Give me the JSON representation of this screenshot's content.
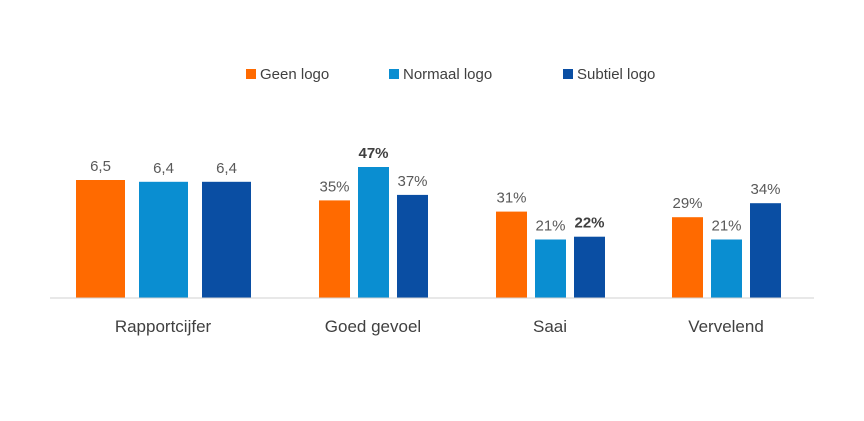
{
  "chart_data": {
    "type": "bar",
    "title": "",
    "xlabel": "",
    "ylabel": "",
    "categories": [
      "Rapportcijfer",
      "Goed gevoel",
      "Saai",
      "Vervelend"
    ],
    "series": [
      {
        "name": "Geen logo",
        "color": "#FF6A00",
        "values": [
          6.5,
          35,
          31,
          29
        ],
        "labels": [
          "6,5",
          "35%",
          "31%",
          "29%"
        ],
        "bold": [
          false,
          false,
          false,
          false
        ]
      },
      {
        "name": "Normaal logo",
        "color": "#0A8ED1",
        "values": [
          6.4,
          47,
          21,
          21
        ],
        "labels": [
          "6,4",
          "47%",
          "21%",
          "21%"
        ],
        "bold": [
          false,
          true,
          false,
          false
        ]
      },
      {
        "name": "Subtiel logo",
        "color": "#0A4EA3",
        "values": [
          6.4,
          37,
          22,
          34
        ],
        "labels": [
          "6,4",
          "37%",
          "22%",
          "34%"
        ],
        "bold": [
          false,
          false,
          true,
          false
        ]
      }
    ],
    "scales": [
      "grade",
      "percent",
      "percent",
      "percent"
    ],
    "scale_max": {
      "grade": 10,
      "percent": 100
    },
    "legend_position": "top-center",
    "grid": false
  }
}
